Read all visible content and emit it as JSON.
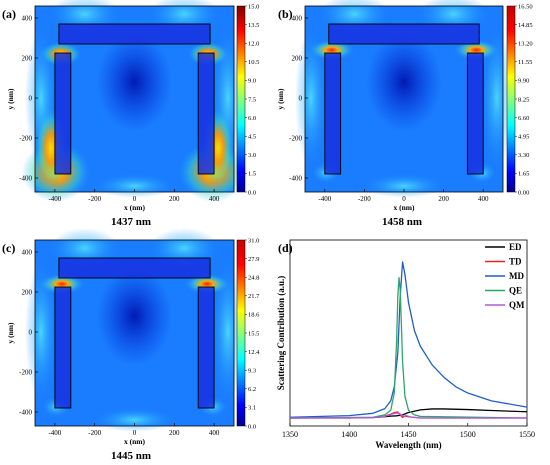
{
  "chart_data": [
    {
      "type": "heatmap",
      "panel_label": "(a)",
      "caption": "1437 nm",
      "xlabel": "x (nm)",
      "ylabel": "y (nm)",
      "xlim": [
        -500,
        500
      ],
      "ylim": [
        -470,
        460
      ],
      "x_ticks": [
        "-400",
        "-200",
        "0",
        "200",
        "400"
      ],
      "y_ticks": [
        "400",
        "200",
        "0",
        "-200",
        "-400"
      ],
      "colorbar": {
        "min": 0.0,
        "max": 15.0,
        "ticks": [
          "15.0",
          "13.5",
          "12.0",
          "10.5",
          "9.0",
          "7.5",
          "6.0",
          "4.5",
          "3.0",
          "1.5",
          "0.0"
        ]
      },
      "hotspots": "outer bottom corners of both legs, top corners of legs"
    },
    {
      "type": "heatmap",
      "panel_label": "(b)",
      "caption": "1458 nm",
      "xlabel": "x (nm)",
      "ylabel": "y (nm)",
      "xlim": [
        -500,
        500
      ],
      "ylim": [
        -470,
        460
      ],
      "x_ticks": [
        "-400",
        "-200",
        "0",
        "200",
        "400"
      ],
      "y_ticks": [
        "400",
        "200",
        "0",
        "-200",
        "-400"
      ],
      "colorbar": {
        "min": 0.0,
        "max": 16.5,
        "ticks": [
          "16.50",
          "14.85",
          "13.20",
          "11.55",
          "9.90",
          "8.25",
          "6.60",
          "4.95",
          "3.30",
          "1.65",
          "0.00"
        ]
      },
      "hotspots": "top corners of both legs below bar"
    },
    {
      "type": "heatmap",
      "panel_label": "(c)",
      "caption": "1445 nm",
      "xlabel": "x (nm)",
      "ylabel": "y (nm)",
      "xlim": [
        -500,
        500
      ],
      "ylim": [
        -470,
        460
      ],
      "x_ticks": [
        "-400",
        "-200",
        "0",
        "200",
        "400"
      ],
      "y_ticks": [
        "400",
        "200",
        "0",
        "-200",
        "-400"
      ],
      "colorbar": {
        "min": 0.0,
        "max": 31.0,
        "ticks": [
          "31.0",
          "27.9",
          "24.8",
          "21.7",
          "18.6",
          "15.5",
          "12.4",
          "9.3",
          "6.2",
          "3.1",
          "0.0"
        ]
      },
      "hotspots": "top corners of both legs below bar"
    },
    {
      "type": "line",
      "panel_label": "(d)",
      "xlabel": "Wavelength (nm)",
      "ylabel": "Scattering Contribution (a.u.)",
      "xlim": [
        1350,
        1550
      ],
      "ylim": [
        0,
        1.0
      ],
      "x_ticks": [
        "1350",
        "1400",
        "1450",
        "1500",
        "1550"
      ],
      "series": [
        {
          "name": "ED",
          "color": "#000000",
          "x": [
            1350,
            1400,
            1420,
            1430,
            1435,
            1440,
            1445,
            1450,
            1460,
            1470,
            1480,
            1500,
            1520,
            1550
          ],
          "y": [
            0.0,
            0.0,
            0.003,
            0.008,
            0.012,
            0.014,
            0.02,
            0.035,
            0.052,
            0.058,
            0.058,
            0.054,
            0.048,
            0.04
          ]
        },
        {
          "name": "TD",
          "color": "#e8252a",
          "x": [
            1350,
            1420,
            1430,
            1435,
            1438,
            1441,
            1443,
            1445,
            1447,
            1450,
            1460,
            1550
          ],
          "y": [
            0.0,
            0.003,
            0.012,
            0.025,
            0.035,
            0.038,
            0.02,
            0.004,
            0.012,
            0.008,
            0.0,
            0.0
          ]
        },
        {
          "name": "MD",
          "color": "#1f5fc4",
          "x": [
            1350,
            1400,
            1420,
            1430,
            1435,
            1438,
            1441,
            1443,
            1445,
            1447,
            1450,
            1455,
            1460,
            1470,
            1480,
            1490,
            1500,
            1520,
            1550
          ],
          "y": [
            0.005,
            0.015,
            0.03,
            0.06,
            0.11,
            0.2,
            0.42,
            0.78,
            1.0,
            0.92,
            0.74,
            0.56,
            0.46,
            0.34,
            0.26,
            0.2,
            0.16,
            0.11,
            0.07
          ]
        },
        {
          "name": "QE",
          "color": "#2ea66b",
          "x": [
            1350,
            1420,
            1430,
            1435,
            1438,
            1440,
            1441,
            1442,
            1443,
            1444,
            1445,
            1447,
            1450,
            1455,
            1460,
            1550
          ],
          "y": [
            0.0,
            0.005,
            0.02,
            0.05,
            0.16,
            0.5,
            0.78,
            0.9,
            0.82,
            0.6,
            0.36,
            0.14,
            0.05,
            0.02,
            0.01,
            0.0
          ]
        },
        {
          "name": "QM",
          "color": "#b25bd6",
          "x": [
            1350,
            1420,
            1430,
            1436,
            1440,
            1442,
            1444,
            1446,
            1448,
            1452,
            1460,
            1550
          ],
          "y": [
            0.0,
            0.002,
            0.01,
            0.025,
            0.032,
            0.03,
            0.02,
            0.01,
            0.016,
            0.006,
            0.0,
            0.0
          ]
        }
      ],
      "legend_position": "top-right"
    }
  ]
}
